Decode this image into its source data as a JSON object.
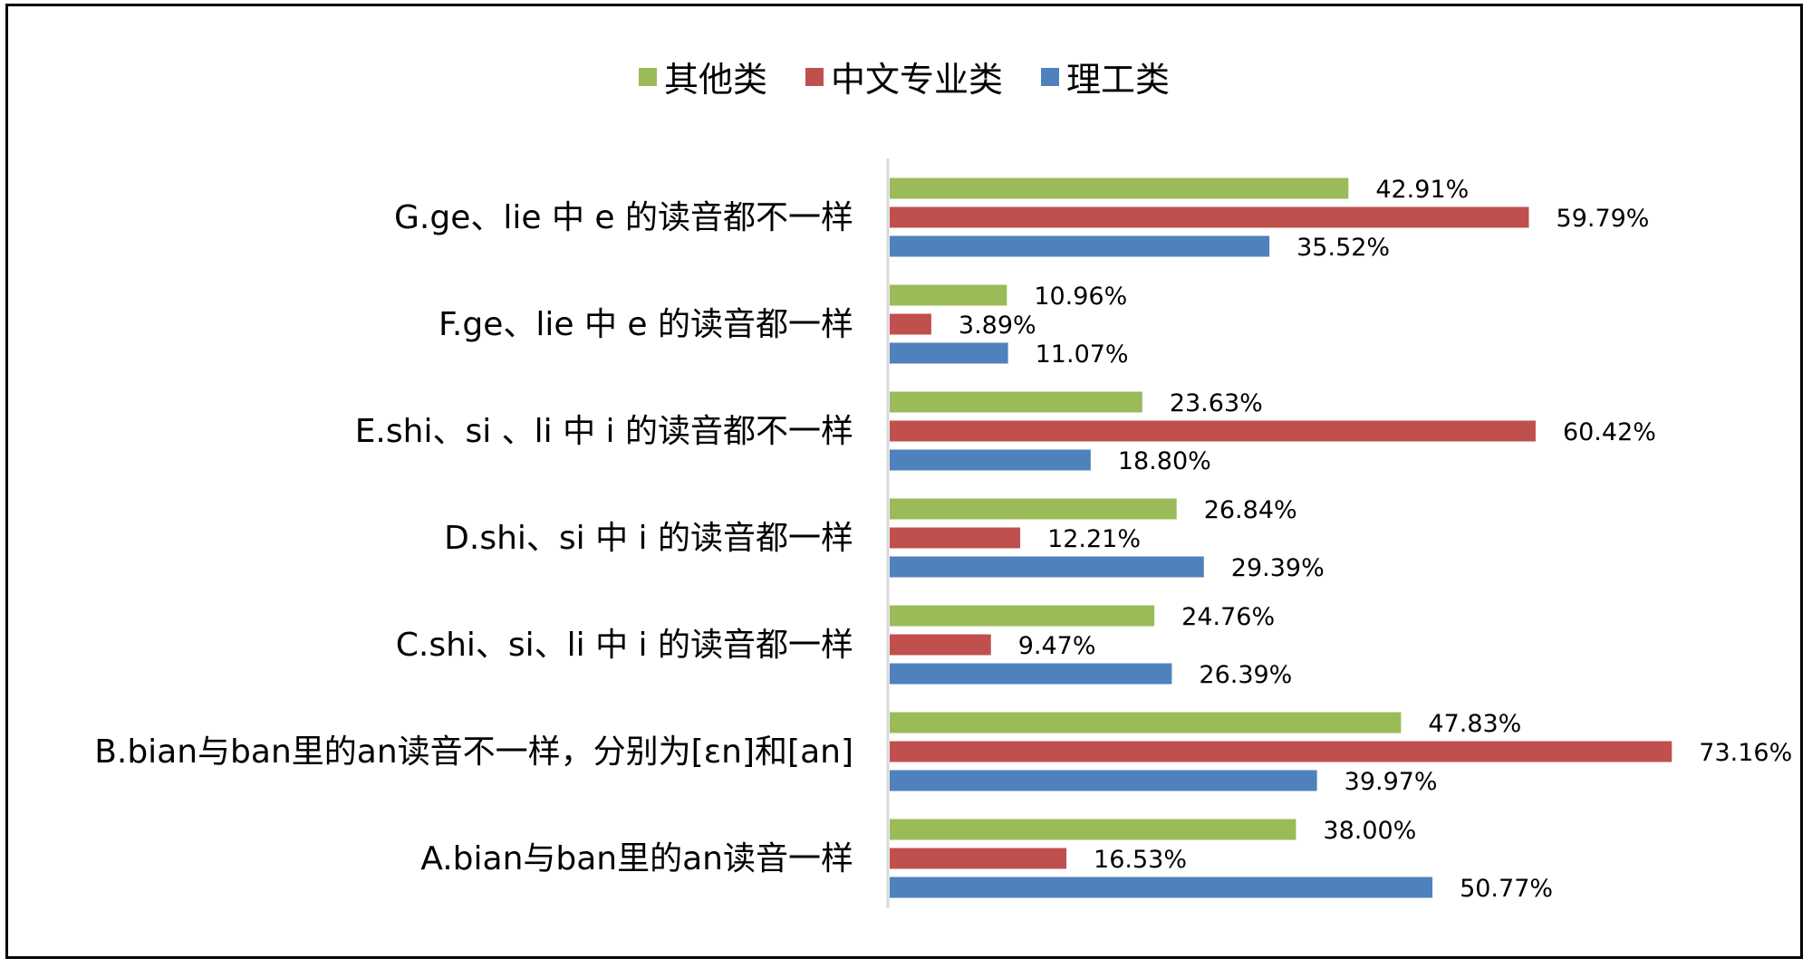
{
  "chart_data": {
    "type": "bar",
    "orientation": "horizontal",
    "title": "",
    "xlabel": "",
    "ylabel": "",
    "legend_position": "top",
    "grid": false,
    "xlim": [
      0,
      80
    ],
    "categories": [
      "A.bian与ban里的an读音一样",
      "B.bian与ban里的an读音不一样，分别为[ɛn]和[an]",
      "C.shi、si、li 中 i 的读音都一样",
      "D.shi、si 中 i 的读音都一样",
      "E.shi、si 、li 中 i 的读音都不一样",
      "F.ge、lie 中 e 的读音都一样",
      "G.ge、lie 中 e 的读音都不一样"
    ],
    "series": [
      {
        "name": "其他类",
        "color": "#9BBB59",
        "values": [
          38.0,
          47.83,
          24.76,
          26.84,
          23.63,
          10.96,
          42.91
        ],
        "labels": [
          "38.00%",
          "47.83%",
          "24.76%",
          "26.84%",
          "23.63%",
          "10.96%",
          "42.91%"
        ]
      },
      {
        "name": "中文专业类",
        "color": "#C0504D",
        "values": [
          16.53,
          73.16,
          9.47,
          12.21,
          60.42,
          3.89,
          59.79
        ],
        "labels": [
          "16.53%",
          "73.16%",
          "9.47%",
          "12.21%",
          "60.42%",
          "3.89%",
          "59.79%"
        ]
      },
      {
        "name": "理工类",
        "color": "#4F81BD",
        "values": [
          50.77,
          39.97,
          26.39,
          29.39,
          18.8,
          11.07,
          35.52
        ],
        "labels": [
          "50.77%",
          "39.97%",
          "26.39%",
          "29.39%",
          "18.80%",
          "11.07%",
          "35.52%"
        ]
      }
    ]
  }
}
